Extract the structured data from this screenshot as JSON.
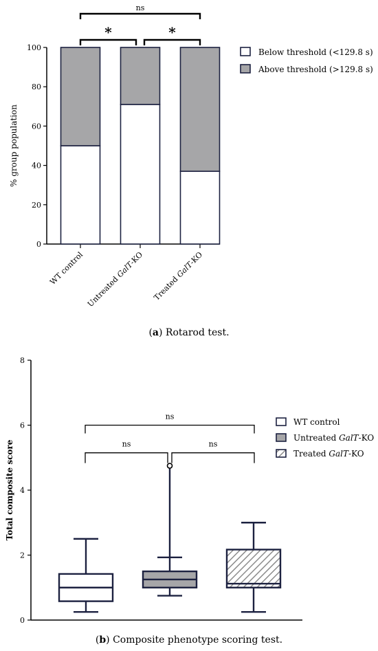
{
  "chart_data": [
    {
      "type": "bar",
      "stacked": true,
      "categories": [
        "WT control",
        "Untreated GalT-KO",
        "Treated GalT-KO"
      ],
      "category_labels": [
        {
          "pre": "WT control",
          "em": "",
          "post": ""
        },
        {
          "pre": "Untreated ",
          "em": "GalT",
          "post": "-KO"
        },
        {
          "pre": "Treated ",
          "em": "GalT",
          "post": "-KO"
        }
      ],
      "series": [
        {
          "name": "Below threshold (<129.8 s)",
          "values": [
            50,
            71,
            37
          ],
          "color": "#ffffff"
        },
        {
          "name": "Above threshold (>129.8 s)",
          "values": [
            50,
            29,
            63
          ],
          "color": "#a6a6a8"
        }
      ],
      "ylabel": "% group population",
      "ylim": [
        0,
        100
      ],
      "yticks": [
        0,
        20,
        40,
        60,
        80,
        100
      ],
      "legend_position": "right",
      "significance": [
        {
          "from": 0,
          "to": 2,
          "label": "ns"
        },
        {
          "from": 0,
          "to": 1,
          "label": "*"
        },
        {
          "from": 1,
          "to": 2,
          "label": "*"
        }
      ],
      "caption": {
        "letter": "a",
        "text": ") Rotarod test."
      }
    },
    {
      "type": "box",
      "categories": [
        "WT control",
        "Untreated GalT-KO",
        "Treated GalT-KO"
      ],
      "series": [
        {
          "name": "WT control",
          "name_parts": {
            "pre": "WT control",
            "em": "",
            "post": ""
          },
          "min": 0.25,
          "q1": 0.58,
          "median": 1.0,
          "q3": 1.42,
          "max": 2.5,
          "fill": "white",
          "outliers": []
        },
        {
          "name": "Untreated GalT-KO",
          "name_parts": {
            "pre": "Untreated ",
            "em": "GalT",
            "post": "-KO"
          },
          "min": 0.75,
          "q1": 1.0,
          "median": 1.25,
          "q3": 1.5,
          "max": 1.93,
          "fill": "gray",
          "outliers": [
            4.75
          ]
        },
        {
          "name": "Treated GalT-KO",
          "name_parts": {
            "pre": "Treated ",
            "em": "GalT",
            "post": "-KO"
          },
          "min": 0.25,
          "q1": 1.0,
          "median": 1.12,
          "q3": 2.17,
          "max": 3.0,
          "fill": "hatch",
          "outliers": []
        }
      ],
      "ylabel": "Total composite score",
      "ylim": [
        0,
        8
      ],
      "yticks": [
        0,
        2,
        4,
        6,
        8
      ],
      "legend_position": "right",
      "significance": [
        {
          "from": 0,
          "to": 2,
          "label": "ns"
        },
        {
          "from": 0,
          "to": 1,
          "label": "ns"
        },
        {
          "from": 1,
          "to": 2,
          "label": "ns"
        }
      ],
      "caption": {
        "letter": "b",
        "text": ") Composite phenotype scoring test."
      }
    }
  ]
}
